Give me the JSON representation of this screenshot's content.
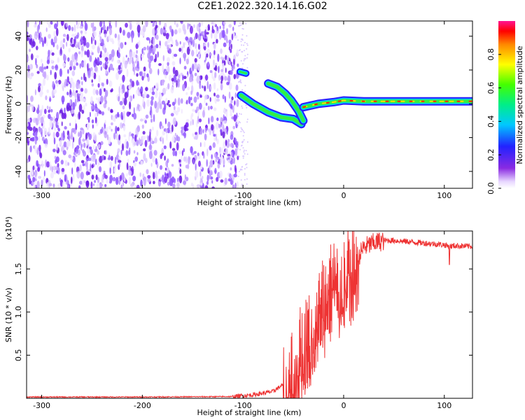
{
  "title": "C2E1.2022.320.14.16.G02",
  "chart_data": [
    {
      "type": "heatmap",
      "xlabel": "Height of straight line (km)",
      "ylabel": "Frequency (Hz)",
      "xlim": [
        -315,
        128
      ],
      "ylim": [
        -50,
        49
      ],
      "xticks": [
        -300,
        -200,
        -100,
        0,
        100
      ],
      "yticks": [
        -40,
        -20,
        0,
        20,
        40
      ],
      "colorbar": {
        "label": "Normalized spectral amplitude",
        "range": [
          0,
          1
        ],
        "ticks": [
          0.0,
          0.2,
          0.4,
          0.6,
          0.8
        ],
        "tick_labels": [
          "0.0",
          "0.2",
          "0.4",
          "0.6",
          "0.8"
        ]
      },
      "noise_region_x": [
        -315,
        -105
      ],
      "features": [
        {
          "kind": "spot",
          "x": [
            -103,
            -97
          ],
          "y": [
            19,
            18
          ]
        },
        {
          "kind": "ridge",
          "x": [
            -102,
            -90,
            -75,
            -62,
            -50,
            -42
          ],
          "y": [
            5,
            0,
            -5,
            -8,
            -9,
            -12
          ]
        },
        {
          "kind": "ridge",
          "x": [
            -75,
            -66,
            -58,
            -52,
            -45,
            -40
          ],
          "y": [
            12,
            10,
            6,
            2,
            -4,
            -10
          ]
        },
        {
          "kind": "ridge",
          "x": [
            -40,
            -25,
            -10,
            0,
            20,
            60,
            100,
            128
          ],
          "y": [
            -2,
            0,
            1,
            2,
            1.5,
            1.5,
            1.5,
            1.5
          ]
        }
      ]
    },
    {
      "type": "line",
      "xlabel": "Height of straight line (km)",
      "ylabel": "SNR (10 * v/v)",
      "y_exponent_label": "(x10⁴)",
      "xlim": [
        -315,
        128
      ],
      "ylim": [
        0,
        19400
      ],
      "xticks": [
        -300,
        -200,
        -100,
        0,
        100
      ],
      "yticks": [
        5000,
        10000,
        15000
      ],
      "ytick_labels": [
        "0.5",
        "1.0",
        "1.5"
      ],
      "color": "#ee3333",
      "series": [
        {
          "x": [
            -315,
            -200,
            -110,
            -90,
            -70,
            -55,
            -45,
            -40,
            -35,
            -30,
            -25,
            -20,
            -15,
            -10,
            -5,
            0,
            5,
            10,
            15,
            20,
            30,
            40,
            50,
            60,
            70,
            80,
            90,
            100,
            105,
            110,
            128
          ],
          "y": [
            150,
            150,
            200,
            400,
            800,
            2000,
            4500,
            6000,
            7500,
            8500,
            10000,
            11000,
            12000,
            13000,
            13500,
            14000,
            14500,
            15500,
            16500,
            17500,
            18000,
            18300,
            18300,
            18200,
            18100,
            18000,
            17900,
            17800,
            17600,
            17700,
            17600
          ]
        }
      ]
    }
  ]
}
